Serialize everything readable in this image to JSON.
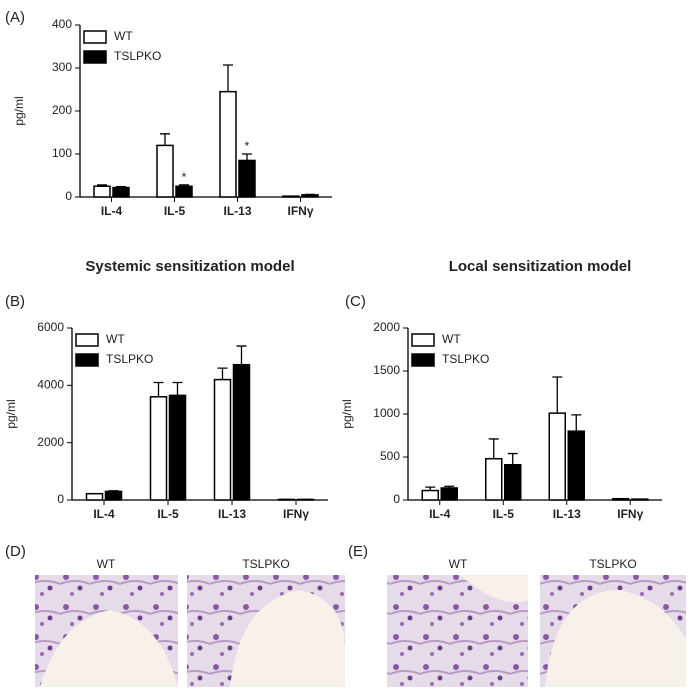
{
  "chart_data": [
    {
      "type": "bar",
      "panel_label": "(A)",
      "ylabel": "pg/ml",
      "categories": [
        "IL-4",
        "IL-5",
        "IL-13",
        "IFNγ"
      ],
      "series": [
        {
          "name": "WT",
          "color": "#ffffff",
          "values": [
            25,
            120,
            245,
            2
          ],
          "errors": [
            3,
            27,
            62,
            0
          ]
        },
        {
          "name": "TSLPKO",
          "color": "#000000",
          "values": [
            22,
            25,
            85,
            5
          ],
          "errors": [
            2,
            3,
            15,
            1
          ],
          "markers": [
            null,
            "*",
            "*",
            null
          ]
        }
      ],
      "ylim": [
        0,
        400
      ],
      "yticks": [
        0,
        100,
        200,
        300,
        400
      ],
      "legend": "upper left"
    },
    {
      "type": "bar",
      "panel_label": "(B)",
      "title": "Systemic sensitization model",
      "ylabel": "pg/ml",
      "categories": [
        "IL-4",
        "IL-5",
        "IL-13",
        "IFNγ"
      ],
      "series": [
        {
          "name": "WT",
          "color": "#ffffff",
          "values": [
            220,
            3600,
            4200,
            20
          ],
          "errors": [
            0,
            500,
            400,
            0
          ]
        },
        {
          "name": "TSLPKO",
          "color": "#000000",
          "values": [
            300,
            3650,
            4720,
            20
          ],
          "errors": [
            20,
            450,
            650,
            0
          ]
        }
      ],
      "ylim": [
        0,
        6000
      ],
      "yticks": [
        0,
        2000,
        4000,
        6000
      ],
      "legend": "upper left"
    },
    {
      "type": "bar",
      "panel_label": "(C)",
      "title": "Local sensitization model",
      "ylabel": "pg/ml",
      "categories": [
        "IL-4",
        "IL-5",
        "IL-13",
        "IFNγ"
      ],
      "series": [
        {
          "name": "WT",
          "color": "#ffffff",
          "values": [
            110,
            480,
            1010,
            15
          ],
          "errors": [
            40,
            230,
            420,
            0
          ]
        },
        {
          "name": "TSLPKO",
          "color": "#000000",
          "values": [
            140,
            410,
            800,
            10
          ],
          "errors": [
            20,
            130,
            190,
            0
          ]
        }
      ],
      "ylim": [
        0,
        2000
      ],
      "yticks": [
        0,
        500,
        1000,
        1500,
        2000
      ],
      "legend": "upper left"
    }
  ],
  "images": [
    {
      "panel_label": "(D)",
      "captions": [
        "WT",
        "TSLPKO"
      ]
    },
    {
      "panel_label": "(E)",
      "captions": [
        "WT",
        "TSLPKO"
      ]
    }
  ]
}
